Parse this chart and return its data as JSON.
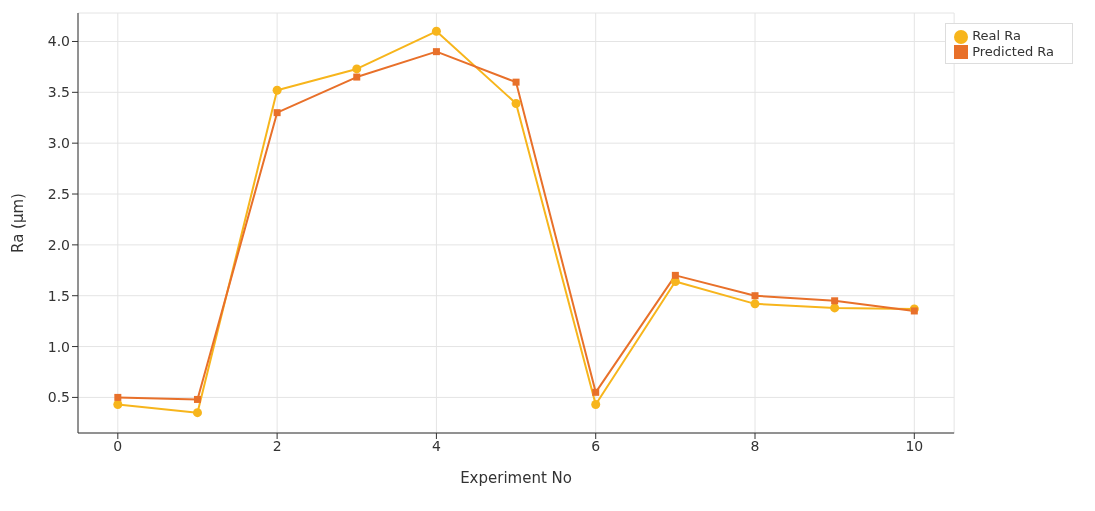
{
  "chart_data": {
    "type": "line",
    "xlabel": "Experiment No",
    "ylabel": "Ra (µm)",
    "x": [
      0,
      1,
      2,
      3,
      4,
      5,
      6,
      7,
      8,
      9,
      10
    ],
    "series": [
      {
        "name": "Real Ra",
        "color": "#f7b51c",
        "marker": "circle",
        "values": [
          0.43,
          0.35,
          3.52,
          3.73,
          4.1,
          3.39,
          0.43,
          1.64,
          1.42,
          1.38,
          1.37
        ]
      },
      {
        "name": "Predicted Ra",
        "color": "#e8702a",
        "marker": "square",
        "values": [
          0.5,
          0.48,
          3.3,
          3.65,
          3.9,
          3.6,
          0.55,
          1.7,
          1.5,
          1.45,
          1.35
        ]
      }
    ],
    "xlim": [
      -0.5,
      10.5
    ],
    "xticks": [
      0,
      2,
      4,
      6,
      8,
      10
    ],
    "ylim": [
      0.15,
      4.28
    ],
    "yticks": [
      0.5,
      {
        "value": 1,
        "label": "1.0"
      },
      1.5,
      {
        "value": 2,
        "label": "2.0"
      },
      2.5,
      {
        "value": 3,
        "label": "3.0"
      },
      3.5,
      {
        "value": 4,
        "label": "4.0"
      }
    ],
    "grid": true,
    "legend": "top right",
    "line_style": "solid"
  }
}
